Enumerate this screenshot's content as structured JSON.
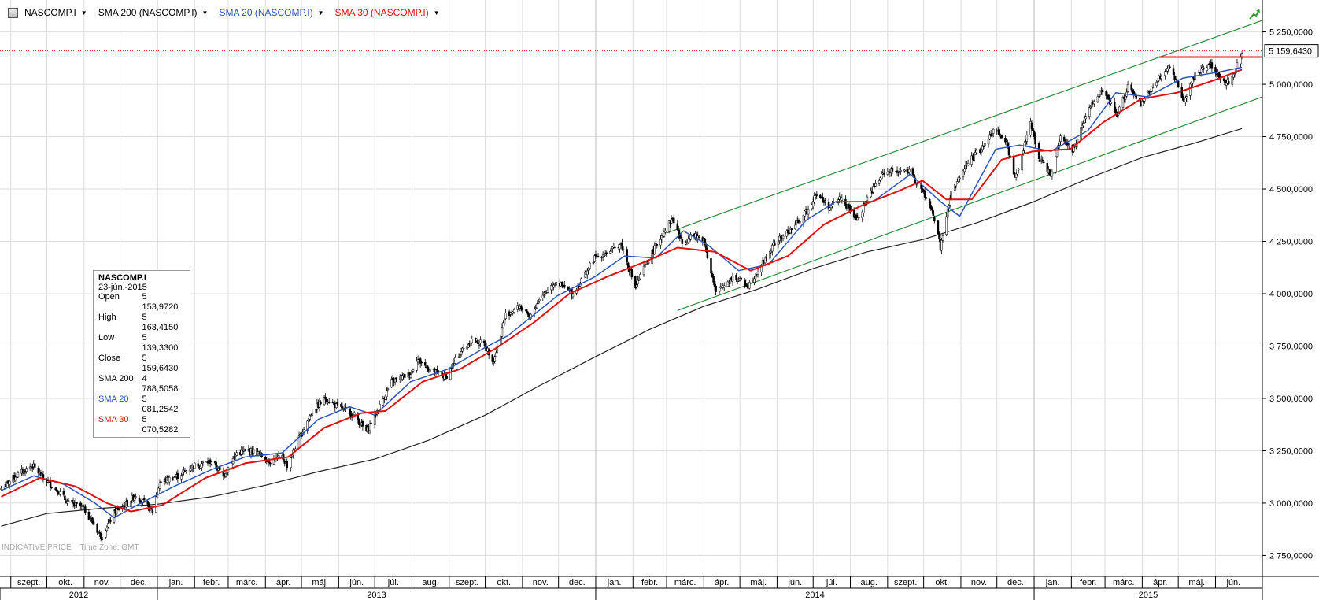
{
  "legend": {
    "items": [
      {
        "label": "NASCOMP.I",
        "color": "#000000"
      },
      {
        "label": "SMA 200 (NASCOMP.I)",
        "color": "#000000"
      },
      {
        "label": "SMA 20 (NASCOMP.I)",
        "color": "#2b55b8"
      },
      {
        "label": "SMA 30 (NASCOMP.I)",
        "color": "#e01010"
      }
    ]
  },
  "info_box": {
    "title": "NASCOMP.I",
    "date": "23-jún.-2015",
    "rows": [
      {
        "key": "Open",
        "value": "5 153,9720",
        "color": "#000000"
      },
      {
        "key": "High",
        "value": "5 163,4150",
        "color": "#000000"
      },
      {
        "key": "Low",
        "value": "5 139,3300",
        "color": "#000000"
      },
      {
        "key": "Close",
        "value": "5 159,6430",
        "color": "#000000"
      },
      {
        "key": "SMA 200",
        "value": "4 788,5058",
        "color": "#000000"
      },
      {
        "key": "SMA 20",
        "value": "5 081,2542",
        "color": "#2b55b8"
      },
      {
        "key": "SMA 30",
        "value": "5 070,5282",
        "color": "#e01010"
      }
    ]
  },
  "footer": {
    "price_note": "INDICATIVE PRICE",
    "timezone_note": "Time Zone: GMT"
  },
  "colors": {
    "sma20": "#2b55b8",
    "sma30": "#e01010",
    "sma200": "#222222",
    "channel": "#2e8b3a",
    "grid": "#dddddd",
    "up": "#ffffff",
    "down": "#000000",
    "wick": "#000000"
  },
  "chart_data": {
    "type": "candlestick",
    "instrument": "NASCOMP.I",
    "last_price_label": "5 159,6430",
    "last_price": 5159.643,
    "ylim": [
      2650,
      5350
    ],
    "y_ticks": [
      2750,
      3000,
      3250,
      3500,
      3750,
      4000,
      4250,
      4500,
      4750,
      5000,
      5250
    ],
    "y_tick_labels": [
      "2 750,0000",
      "3 000,0000",
      "3 250,0000",
      "3 500,0000",
      "3 750,0000",
      "4 000,0000",
      "4 250,0000",
      "4 500,0000",
      "4 750,0000",
      "5 000,0000",
      "5 250,0000"
    ],
    "x_range": [
      "2012-08-23",
      "2015-07-10"
    ],
    "months": [
      {
        "label": "szept.",
        "date": "2012-09-01"
      },
      {
        "label": "okt.",
        "date": "2012-10-01"
      },
      {
        "label": "nov.",
        "date": "2012-11-01"
      },
      {
        "label": "dec.",
        "date": "2012-12-01"
      },
      {
        "label": "jan.",
        "date": "2013-01-01"
      },
      {
        "label": "febr.",
        "date": "2013-02-01"
      },
      {
        "label": "márc.",
        "date": "2013-03-01"
      },
      {
        "label": "ápr.",
        "date": "2013-04-01"
      },
      {
        "label": "máj.",
        "date": "2013-05-01"
      },
      {
        "label": "jún.",
        "date": "2013-06-01"
      },
      {
        "label": "júl.",
        "date": "2013-07-01"
      },
      {
        "label": "aug.",
        "date": "2013-08-01"
      },
      {
        "label": "szept.",
        "date": "2013-09-01"
      },
      {
        "label": "okt.",
        "date": "2013-10-01"
      },
      {
        "label": "nov.",
        "date": "2013-11-01"
      },
      {
        "label": "dec.",
        "date": "2013-12-01"
      },
      {
        "label": "jan.",
        "date": "2014-01-01"
      },
      {
        "label": "febr.",
        "date": "2014-02-01"
      },
      {
        "label": "márc.",
        "date": "2014-03-01"
      },
      {
        "label": "ápr.",
        "date": "2014-04-01"
      },
      {
        "label": "máj.",
        "date": "2014-05-01"
      },
      {
        "label": "jún.",
        "date": "2014-06-01"
      },
      {
        "label": "júl.",
        "date": "2014-07-01"
      },
      {
        "label": "aug.",
        "date": "2014-08-01"
      },
      {
        "label": "szept.",
        "date": "2014-09-01"
      },
      {
        "label": "okt.",
        "date": "2014-10-01"
      },
      {
        "label": "nov.",
        "date": "2014-11-01"
      },
      {
        "label": "dec.",
        "date": "2014-12-01"
      },
      {
        "label": "jan.",
        "date": "2015-01-01"
      },
      {
        "label": "febr.",
        "date": "2015-02-01"
      },
      {
        "label": "márc.",
        "date": "2015-03-01"
      },
      {
        "label": "ápr.",
        "date": "2015-04-01"
      },
      {
        "label": "máj.",
        "date": "2015-05-01"
      },
      {
        "label": "jún.",
        "date": "2015-06-01"
      }
    ],
    "years": [
      {
        "label": "2012",
        "start": "2012-08-23",
        "end": "2013-01-01"
      },
      {
        "label": "2013",
        "start": "2013-01-01",
        "end": "2014-01-01"
      },
      {
        "label": "2014",
        "start": "2014-01-01",
        "end": "2015-01-01"
      },
      {
        "label": "2015",
        "start": "2015-01-01",
        "end": "2015-07-10"
      }
    ],
    "series": [
      {
        "name": "NASCOMP.I",
        "kind": "close-path",
        "points": [
          [
            "2012-08-24",
            3070
          ],
          [
            "2012-09-05",
            3130
          ],
          [
            "2012-09-19",
            3180
          ],
          [
            "2012-09-28",
            3120
          ],
          [
            "2012-10-10",
            3060
          ],
          [
            "2012-10-19",
            3000
          ],
          [
            "2012-10-31",
            2980
          ],
          [
            "2012-11-09",
            2900
          ],
          [
            "2012-11-15",
            2840
          ],
          [
            "2012-11-27",
            2960
          ],
          [
            "2012-12-07",
            3000
          ],
          [
            "2012-12-14",
            3040
          ],
          [
            "2012-12-28",
            2960
          ],
          [
            "2013-01-03",
            3100
          ],
          [
            "2013-01-18",
            3130
          ],
          [
            "2013-02-01",
            3180
          ],
          [
            "2013-02-15",
            3200
          ],
          [
            "2013-02-25",
            3130
          ],
          [
            "2013-03-08",
            3240
          ],
          [
            "2013-03-22",
            3250
          ],
          [
            "2013-04-05",
            3200
          ],
          [
            "2013-04-15",
            3220
          ],
          [
            "2013-04-19",
            3180
          ],
          [
            "2013-04-30",
            3320
          ],
          [
            "2013-05-10",
            3440
          ],
          [
            "2013-05-21",
            3500
          ],
          [
            "2013-05-31",
            3460
          ],
          [
            "2013-06-14",
            3420
          ],
          [
            "2013-06-24",
            3340
          ],
          [
            "2013-07-03",
            3440
          ],
          [
            "2013-07-15",
            3580
          ],
          [
            "2013-07-31",
            3620
          ],
          [
            "2013-08-05",
            3690
          ],
          [
            "2013-08-15",
            3640
          ],
          [
            "2013-08-29",
            3600
          ],
          [
            "2013-09-10",
            3720
          ],
          [
            "2013-09-20",
            3780
          ],
          [
            "2013-09-30",
            3760
          ],
          [
            "2013-10-08",
            3680
          ],
          [
            "2013-10-18",
            3900
          ],
          [
            "2013-10-30",
            3940
          ],
          [
            "2013-11-07",
            3880
          ],
          [
            "2013-11-15",
            3980
          ],
          [
            "2013-11-29",
            4060
          ],
          [
            "2013-12-05",
            4030
          ],
          [
            "2013-12-13",
            4000
          ],
          [
            "2013-12-31",
            4170
          ],
          [
            "2014-01-15",
            4210
          ],
          [
            "2014-01-22",
            4240
          ],
          [
            "2014-02-03",
            4030
          ],
          [
            "2014-02-10",
            4120
          ],
          [
            "2014-02-28",
            4310
          ],
          [
            "2014-03-06",
            4360
          ],
          [
            "2014-03-14",
            4240
          ],
          [
            "2014-03-21",
            4280
          ],
          [
            "2014-04-01",
            4260
          ],
          [
            "2014-04-11",
            4000
          ],
          [
            "2014-04-15",
            4030
          ],
          [
            "2014-04-25",
            4080
          ],
          [
            "2014-05-08",
            4040
          ],
          [
            "2014-05-15",
            4100
          ],
          [
            "2014-05-30",
            4240
          ],
          [
            "2014-06-13",
            4310
          ],
          [
            "2014-06-27",
            4400
          ],
          [
            "2014-07-03",
            4480
          ],
          [
            "2014-07-15",
            4410
          ],
          [
            "2014-07-24",
            4460
          ],
          [
            "2014-08-07",
            4350
          ],
          [
            "2014-08-15",
            4460
          ],
          [
            "2014-08-29",
            4580
          ],
          [
            "2014-09-10",
            4590
          ],
          [
            "2014-09-19",
            4580
          ],
          [
            "2014-09-30",
            4490
          ],
          [
            "2014-10-09",
            4380
          ],
          [
            "2014-10-15",
            4220
          ],
          [
            "2014-10-24",
            4480
          ],
          [
            "2014-11-07",
            4630
          ],
          [
            "2014-11-21",
            4710
          ],
          [
            "2014-11-28",
            4790
          ],
          [
            "2014-12-08",
            4740
          ],
          [
            "2014-12-16",
            4550
          ],
          [
            "2014-12-29",
            4810
          ],
          [
            "2015-01-05",
            4650
          ],
          [
            "2015-01-15",
            4570
          ],
          [
            "2015-01-23",
            4760
          ],
          [
            "2015-02-02",
            4680
          ],
          [
            "2015-02-17",
            4900
          ],
          [
            "2015-02-27",
            4970
          ],
          [
            "2015-03-11",
            4850
          ],
          [
            "2015-03-20",
            4990
          ],
          [
            "2015-03-31",
            4900
          ],
          [
            "2015-04-10",
            4990
          ],
          [
            "2015-04-24",
            5090
          ],
          [
            "2015-05-06",
            4920
          ],
          [
            "2015-05-15",
            5050
          ],
          [
            "2015-05-27",
            5100
          ],
          [
            "2015-06-09",
            5000
          ],
          [
            "2015-06-15",
            5030
          ],
          [
            "2015-06-23",
            5160
          ]
        ]
      },
      {
        "name": "SMA 200 (NASCOMP.I)",
        "points": [
          [
            "2012-08-24",
            2890
          ],
          [
            "2012-10-01",
            2950
          ],
          [
            "2012-11-15",
            2975
          ],
          [
            "2013-01-01",
            2995
          ],
          [
            "2013-02-15",
            3030
          ],
          [
            "2013-04-01",
            3085
          ],
          [
            "2013-05-15",
            3150
          ],
          [
            "2013-07-01",
            3210
          ],
          [
            "2013-08-15",
            3300
          ],
          [
            "2013-10-01",
            3420
          ],
          [
            "2013-11-15",
            3560
          ],
          [
            "2014-01-01",
            3700
          ],
          [
            "2014-02-15",
            3830
          ],
          [
            "2014-04-01",
            3940
          ],
          [
            "2014-05-15",
            4020
          ],
          [
            "2014-07-01",
            4120
          ],
          [
            "2014-08-15",
            4200
          ],
          [
            "2014-10-01",
            4260
          ],
          [
            "2014-11-15",
            4340
          ],
          [
            "2015-01-01",
            4440
          ],
          [
            "2015-02-15",
            4550
          ],
          [
            "2015-04-01",
            4650
          ],
          [
            "2015-05-15",
            4720
          ],
          [
            "2015-06-23",
            4788.5
          ]
        ]
      },
      {
        "name": "SMA 20 (NASCOMP.I)",
        "points": [
          [
            "2012-08-24",
            3060
          ],
          [
            "2012-09-20",
            3130
          ],
          [
            "2012-10-15",
            3090
          ],
          [
            "2012-11-10",
            3000
          ],
          [
            "2012-11-26",
            2930
          ],
          [
            "2012-12-15",
            2990
          ],
          [
            "2013-01-15",
            3080
          ],
          [
            "2013-02-15",
            3160
          ],
          [
            "2013-03-15",
            3220
          ],
          [
            "2013-04-15",
            3240
          ],
          [
            "2013-05-15",
            3400
          ],
          [
            "2013-06-10",
            3460
          ],
          [
            "2013-07-01",
            3420
          ],
          [
            "2013-07-31",
            3580
          ],
          [
            "2013-08-31",
            3640
          ],
          [
            "2013-09-30",
            3740
          ],
          [
            "2013-10-20",
            3800
          ],
          [
            "2013-11-30",
            3990
          ],
          [
            "2013-12-31",
            4080
          ],
          [
            "2014-01-25",
            4180
          ],
          [
            "2014-02-20",
            4170
          ],
          [
            "2014-03-15",
            4300
          ],
          [
            "2014-04-05",
            4230
          ],
          [
            "2014-04-30",
            4110
          ],
          [
            "2014-05-25",
            4140
          ],
          [
            "2014-06-25",
            4350
          ],
          [
            "2014-07-20",
            4440
          ],
          [
            "2014-08-20",
            4440
          ],
          [
            "2014-09-20",
            4570
          ],
          [
            "2014-10-15",
            4440
          ],
          [
            "2014-10-31",
            4370
          ],
          [
            "2014-11-30",
            4690
          ],
          [
            "2014-12-20",
            4710
          ],
          [
            "2015-01-15",
            4680
          ],
          [
            "2015-02-15",
            4780
          ],
          [
            "2015-03-10",
            4960
          ],
          [
            "2015-04-05",
            4940
          ],
          [
            "2015-05-05",
            5030
          ],
          [
            "2015-06-05",
            5060
          ],
          [
            "2015-06-23",
            5081.25
          ]
        ]
      },
      {
        "name": "SMA 30 (NASCOMP.I)",
        "points": [
          [
            "2012-08-24",
            3030
          ],
          [
            "2012-09-25",
            3120
          ],
          [
            "2012-10-25",
            3080
          ],
          [
            "2012-11-20",
            3000
          ],
          [
            "2012-12-10",
            2960
          ],
          [
            "2013-01-05",
            2990
          ],
          [
            "2013-02-10",
            3120
          ],
          [
            "2013-03-15",
            3190
          ],
          [
            "2013-04-20",
            3220
          ],
          [
            "2013-05-20",
            3360
          ],
          [
            "2013-06-20",
            3430
          ],
          [
            "2013-07-10",
            3440
          ],
          [
            "2013-08-10",
            3580
          ],
          [
            "2013-09-10",
            3640
          ],
          [
            "2013-10-10",
            3740
          ],
          [
            "2013-11-10",
            3860
          ],
          [
            "2013-12-10",
            4000
          ],
          [
            "2014-01-10",
            4080
          ],
          [
            "2014-02-10",
            4150
          ],
          [
            "2014-03-10",
            4220
          ],
          [
            "2014-04-10",
            4200
          ],
          [
            "2014-05-10",
            4110
          ],
          [
            "2014-06-10",
            4180
          ],
          [
            "2014-07-10",
            4330
          ],
          [
            "2014-08-10",
            4420
          ],
          [
            "2014-09-10",
            4490
          ],
          [
            "2014-09-30",
            4540
          ],
          [
            "2014-10-20",
            4450
          ],
          [
            "2014-11-10",
            4450
          ],
          [
            "2014-12-05",
            4640
          ],
          [
            "2014-12-31",
            4680
          ],
          [
            "2015-01-31",
            4690
          ],
          [
            "2015-02-28",
            4820
          ],
          [
            "2015-03-31",
            4930
          ],
          [
            "2015-04-30",
            4960
          ],
          [
            "2015-05-31",
            5020
          ],
          [
            "2015-06-23",
            5070.53
          ]
        ]
      }
    ],
    "trend_channel": {
      "upper": [
        [
          "2014-03-01",
          4290
        ],
        [
          "2015-07-10",
          5305
        ]
      ],
      "lower": [
        [
          "2014-03-10",
          3920
        ],
        [
          "2015-07-10",
          4940
        ]
      ]
    },
    "resistance_line": {
      "value": 5130,
      "from": "2015-04-15",
      "to": "2015-07-10"
    }
  }
}
